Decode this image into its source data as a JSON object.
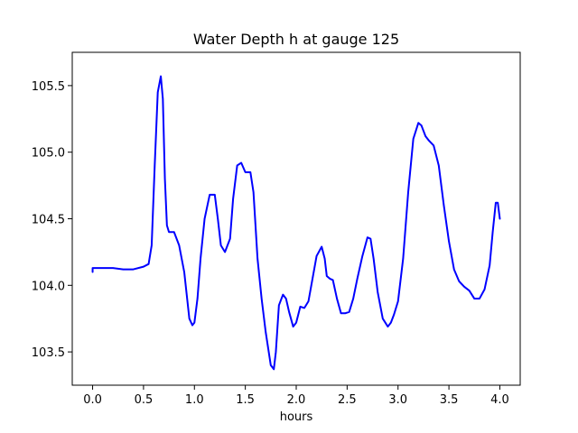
{
  "chart_data": {
    "type": "line",
    "title": "Water Depth h at gauge 125",
    "xlabel": "hours",
    "ylabel": "",
    "xlim": [
      -0.2,
      4.2
    ],
    "ylim": [
      103.25,
      105.75
    ],
    "xticks": [
      0.0,
      0.5,
      1.0,
      1.5,
      2.0,
      2.5,
      3.0,
      3.5,
      4.0
    ],
    "xtick_labels": [
      "0.0",
      "0.5",
      "1.0",
      "1.5",
      "2.0",
      "2.5",
      "3.0",
      "3.5",
      "4.0"
    ],
    "yticks": [
      103.5,
      104.0,
      104.5,
      105.0,
      105.5
    ],
    "ytick_labels": [
      "103.5",
      "104.0",
      "104.5",
      "105.0",
      "105.5"
    ],
    "grid": false,
    "legend": "none",
    "series": [
      {
        "color": "#0000ff",
        "x": [
          0.0,
          0.0,
          0.05,
          0.1,
          0.2,
          0.3,
          0.4,
          0.5,
          0.55,
          0.58,
          0.61,
          0.64,
          0.67,
          0.69,
          0.71,
          0.73,
          0.75,
          0.8,
          0.85,
          0.9,
          0.95,
          0.98,
          1.0,
          1.03,
          1.06,
          1.1,
          1.15,
          1.2,
          1.23,
          1.26,
          1.3,
          1.35,
          1.38,
          1.42,
          1.46,
          1.5,
          1.55,
          1.58,
          1.62,
          1.66,
          1.7,
          1.75,
          1.78,
          1.8,
          1.83,
          1.87,
          1.9,
          1.93,
          1.97,
          2.0,
          2.04,
          2.08,
          2.12,
          2.16,
          2.2,
          2.25,
          2.28,
          2.3,
          2.33,
          2.36,
          2.4,
          2.44,
          2.48,
          2.52,
          2.56,
          2.6,
          2.65,
          2.7,
          2.73,
          2.76,
          2.8,
          2.85,
          2.9,
          2.93,
          2.96,
          3.0,
          3.05,
          3.1,
          3.15,
          3.2,
          3.23,
          3.27,
          3.3,
          3.35,
          3.4,
          3.45,
          3.5,
          3.55,
          3.6,
          3.65,
          3.7,
          3.75,
          3.8,
          3.85,
          3.9,
          3.93,
          3.96,
          3.98,
          4.0
        ],
        "values": [
          104.1,
          104.13,
          104.13,
          104.13,
          104.13,
          104.12,
          104.12,
          104.14,
          104.16,
          104.3,
          104.9,
          105.45,
          105.57,
          105.4,
          104.8,
          104.45,
          104.4,
          104.4,
          104.3,
          104.1,
          103.75,
          103.7,
          103.72,
          103.9,
          104.2,
          104.5,
          104.68,
          104.68,
          104.5,
          104.3,
          104.25,
          104.35,
          104.65,
          104.9,
          104.92,
          104.85,
          104.85,
          104.7,
          104.2,
          103.9,
          103.65,
          103.4,
          103.37,
          103.5,
          103.85,
          103.93,
          103.9,
          103.8,
          103.69,
          103.72,
          103.84,
          103.83,
          103.88,
          104.05,
          104.22,
          104.29,
          104.2,
          104.07,
          104.05,
          104.04,
          103.9,
          103.79,
          103.79,
          103.8,
          103.9,
          104.05,
          104.22,
          104.36,
          104.35,
          104.2,
          103.95,
          103.75,
          103.69,
          103.72,
          103.78,
          103.88,
          104.2,
          104.7,
          105.1,
          105.22,
          105.2,
          105.12,
          105.09,
          105.05,
          104.9,
          104.6,
          104.33,
          104.12,
          104.03,
          103.99,
          103.96,
          103.9,
          103.9,
          103.97,
          104.15,
          104.4,
          104.62,
          104.62,
          104.5
        ]
      }
    ]
  }
}
